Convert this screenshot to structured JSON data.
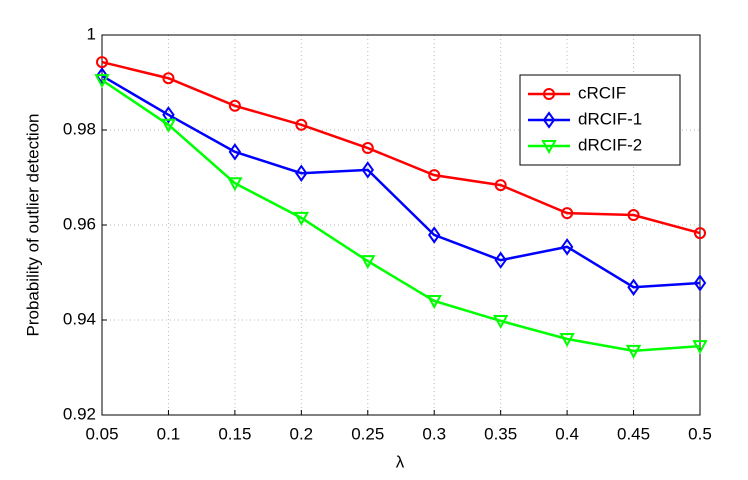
{
  "chart_data": {
    "type": "line",
    "x_label": "λ",
    "y_label": "Probability of outlier detection",
    "x": [
      0.05,
      0.1,
      0.15,
      0.2,
      0.25,
      0.3,
      0.35,
      0.4,
      0.45,
      0.5
    ],
    "series": [
      {
        "name": "cRCIF",
        "color": "#ff0000",
        "marker": "circle",
        "values": [
          0.9943,
          0.9909,
          0.9851,
          0.9811,
          0.9762,
          0.9705,
          0.9684,
          0.9625,
          0.9621,
          0.9583
        ]
      },
      {
        "name": "dRCIF-1",
        "color": "#0000ff",
        "marker": "diamond",
        "values": [
          0.9914,
          0.9832,
          0.9754,
          0.9709,
          0.9716,
          0.9579,
          0.9526,
          0.9554,
          0.9469,
          0.9478
        ]
      },
      {
        "name": "dRCIF-2",
        "color": "#00ff00",
        "marker": "triangle-down",
        "values": [
          0.9905,
          0.9811,
          0.9688,
          0.9615,
          0.9524,
          0.944,
          0.9398,
          0.936,
          0.9335,
          0.9345
        ]
      }
    ],
    "xlim": [
      0.05,
      0.5
    ],
    "xticks": [
      0.05,
      0.1,
      0.15,
      0.2,
      0.25,
      0.3,
      0.35,
      0.4,
      0.45,
      0.5
    ],
    "ylim": [
      0.92,
      1
    ],
    "yticks": [
      0.92,
      0.94,
      0.96,
      0.98,
      1
    ],
    "grid": true,
    "legend": "upper right"
  }
}
